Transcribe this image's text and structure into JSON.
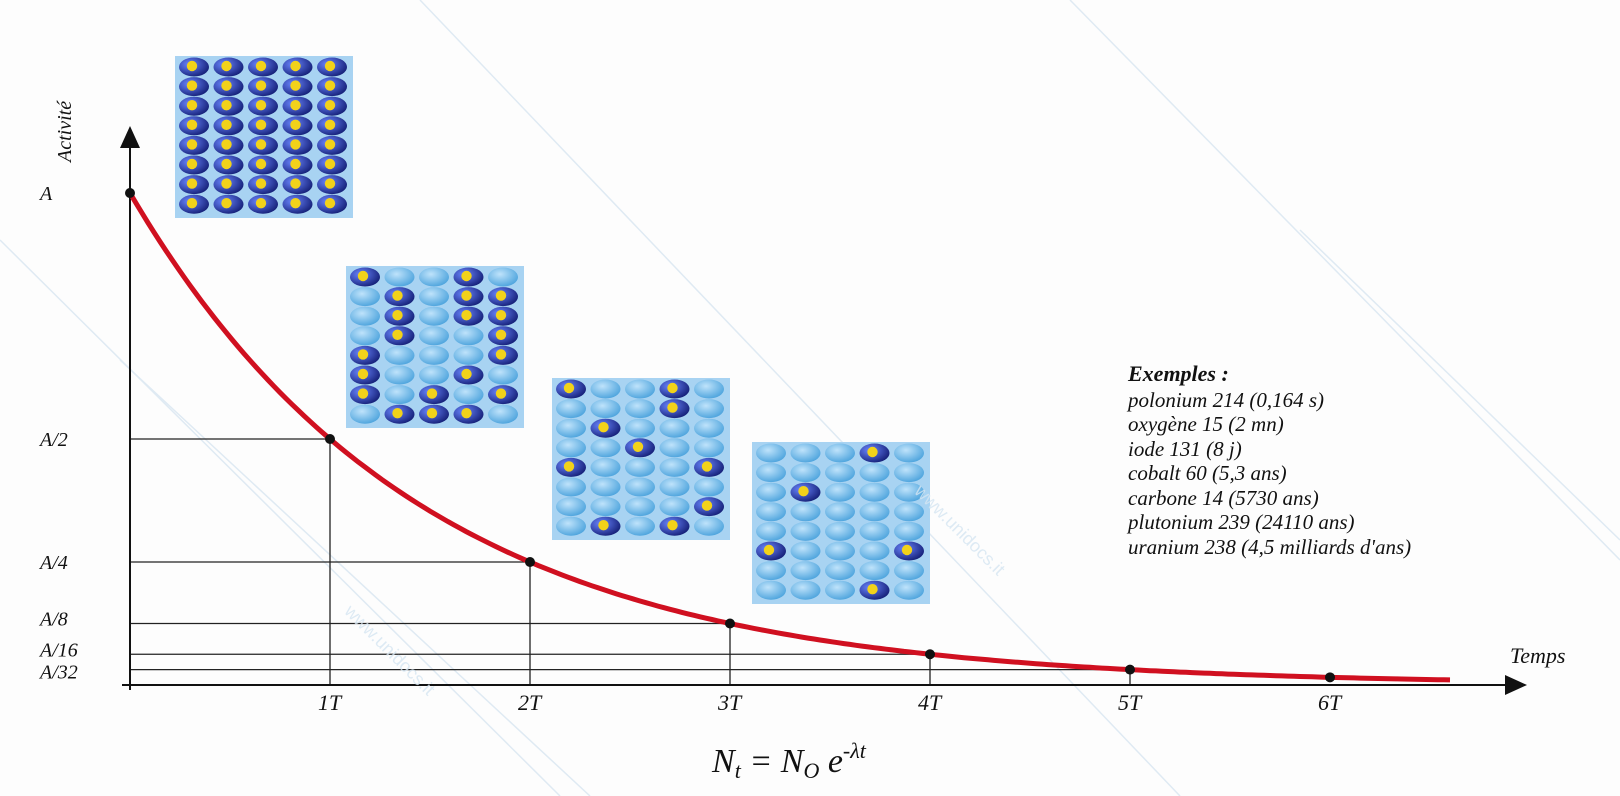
{
  "chart_data": {
    "type": "line",
    "ylabel": "Activité",
    "xlabel": "Temps",
    "x": [
      0,
      1,
      2,
      3,
      4,
      5,
      6
    ],
    "x_tick_labels": [
      "1T",
      "2T",
      "3T",
      "4T",
      "5T",
      "6T"
    ],
    "y_tick_labels": [
      "A",
      "A/2",
      "A/4",
      "A/8",
      "A/16",
      "A/32"
    ],
    "y_fraction_values": [
      1,
      0.5,
      0.25,
      0.125,
      0.0625,
      0.03125
    ],
    "series": [
      {
        "values": [
          1,
          0.5,
          0.25,
          0.125,
          0.0625,
          0.03125,
          0.015625
        ],
        "color": "#d01020"
      }
    ],
    "xlim": [
      0,
      6.6
    ],
    "ylim": [
      0,
      1
    ],
    "legend": "none",
    "grid": false,
    "atom_grids": [
      {
        "after_half_lives": 0,
        "remaining": 40,
        "total": 40
      },
      {
        "after_half_lives": 1,
        "remaining": 20,
        "total": 40
      },
      {
        "after_half_lives": 2,
        "remaining": 10,
        "total": 40
      },
      {
        "after_half_lives": 3,
        "remaining": 5,
        "total": 40
      }
    ]
  },
  "examples": {
    "title": "Exemples :",
    "items": [
      "polonium 214 (0,164 s)",
      "oxygène 15 (2 mn)",
      "iode 131 (8 j)",
      "cobalt 60 (5,3 ans)",
      "carbone 14 (5730 ans)",
      "plutonium 239 (24110 ans)",
      "uranium 238 (4,5 milliards d'ans)"
    ]
  },
  "formula": {
    "lhs": "N",
    "lhs_sub": "t",
    "eq": " = N",
    "rhs_sub": "O",
    "base": " e",
    "exponent": "-λt"
  },
  "watermark": "www.unidocs.it",
  "colors": {
    "curve": "#d01020",
    "atom_active": "#1c2fa0",
    "atom_core": "#f2d21a",
    "atom_decayed": "#5fb6e8",
    "grid_bg": "#a8d3f2"
  }
}
